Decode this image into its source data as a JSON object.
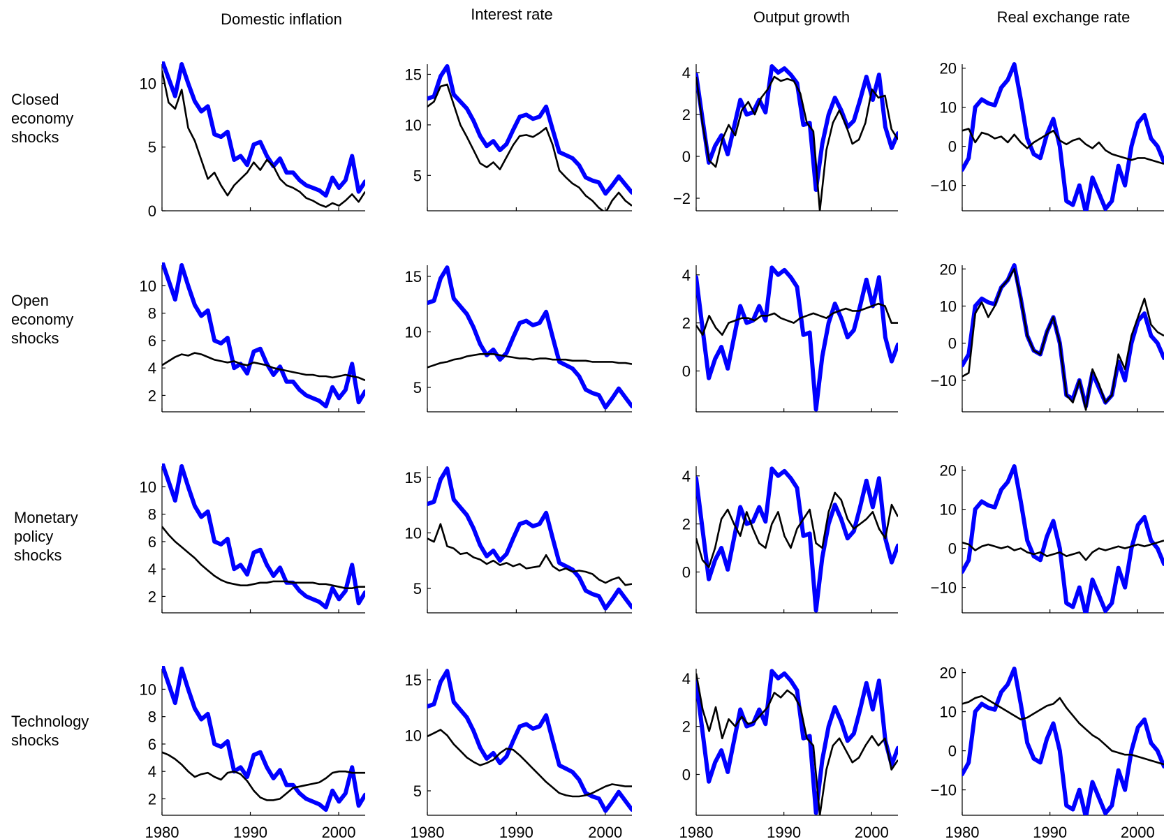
{
  "figure": {
    "columns": [
      "Domestic inflation",
      "Interest rate",
      "Output growth",
      "Real exchange rate"
    ],
    "rows": [
      {
        "label": [
          "Closed",
          "economy",
          "shocks"
        ]
      },
      {
        "label": [
          "Open",
          "economy",
          "shocks"
        ]
      },
      {
        "label": [
          "Monetary",
          "policy",
          "shocks"
        ]
      },
      {
        "label": [
          "Technology",
          "shocks"
        ]
      }
    ],
    "x_ticks": [
      "1980",
      "1990",
      "2000"
    ],
    "colors": {
      "actual": "#0000ff",
      "model": "#000000"
    }
  },
  "chart_data": {
    "type": "line",
    "x_range": [
      1980,
      2003
    ],
    "x_ticks": [
      1980,
      1990,
      2000
    ],
    "actual": {
      "domestic_inflation": [
        11.8,
        10.4,
        9.0,
        11.5,
        10.0,
        8.6,
        7.8,
        8.2,
        6.0,
        5.8,
        6.2,
        4.0,
        4.3,
        3.6,
        5.2,
        5.4,
        4.3,
        3.5,
        4.1,
        3.0,
        3.0,
        2.4,
        2.0,
        1.8,
        1.6,
        1.2,
        2.6,
        1.8,
        2.4,
        4.3,
        1.5,
        2.3
      ],
      "interest_rate": [
        12.6,
        12.8,
        14.8,
        15.8,
        13.0,
        12.3,
        11.6,
        10.4,
        8.9,
        7.9,
        8.4,
        7.5,
        8.1,
        9.5,
        10.8,
        11.0,
        10.6,
        10.8,
        11.8,
        9.5,
        7.3,
        7.0,
        6.7,
        6.0,
        4.8,
        4.5,
        4.3,
        3.2,
        4.0,
        4.9,
        4.1,
        3.3
      ],
      "output_growth": [
        3.9,
        1.8,
        -0.3,
        0.5,
        1.0,
        0.1,
        1.4,
        2.7,
        2.0,
        2.1,
        2.7,
        2.1,
        4.3,
        4.0,
        4.2,
        3.9,
        3.5,
        1.5,
        1.6,
        -1.6,
        0.6,
        2.0,
        2.8,
        2.2,
        1.4,
        1.7,
        2.7,
        3.8,
        2.7,
        3.9,
        1.4,
        0.4,
        1.1
      ],
      "real_exchange_rate": [
        -6.0,
        -3.0,
        10.0,
        12.0,
        11.0,
        10.5,
        15.0,
        17.0,
        21.0,
        12.0,
        2.0,
        -2.0,
        -3.0,
        3.0,
        7.0,
        0.0,
        -14.0,
        -15.0,
        -10.0,
        -17.0,
        -8.0,
        -12.0,
        -16.0,
        -14.0,
        -5.0,
        -10.0,
        0.0,
        6.0,
        8.0,
        2.0,
        0.0,
        -4.0
      ]
    },
    "panels": [
      {
        "row": "Closed economy shocks",
        "column": "Domestic inflation",
        "ylim": [
          0,
          11.5
        ],
        "yticks": [
          0,
          5,
          10
        ],
        "model": [
          11.0,
          8.5,
          8.0,
          9.5,
          6.5,
          5.5,
          4.0,
          2.5,
          3.0,
          2.0,
          1.2,
          2.0,
          2.5,
          3.0,
          3.8,
          3.2,
          4.0,
          3.5,
          2.5,
          2.0,
          1.8,
          1.5,
          1.0,
          0.8,
          0.5,
          0.3,
          0.6,
          0.4,
          0.8,
          1.3,
          0.7,
          1.5
        ]
      },
      {
        "row": "Closed economy shocks",
        "column": "Interest rate",
        "ylim": [
          1.5,
          16.0
        ],
        "yticks": [
          5,
          10,
          15
        ],
        "model": [
          11.8,
          12.3,
          13.8,
          14.0,
          12.0,
          10.0,
          8.8,
          7.5,
          6.2,
          5.8,
          6.3,
          5.6,
          6.8,
          8.0,
          8.9,
          9.0,
          8.8,
          9.2,
          9.7,
          8.0,
          5.5,
          4.8,
          4.2,
          3.8,
          3.0,
          2.5,
          1.8,
          1.3,
          2.5,
          3.3,
          2.5,
          2.0
        ]
      },
      {
        "row": "Closed economy shocks",
        "column": "Output growth",
        "ylim": [
          -2.6,
          4.4
        ],
        "yticks": [
          -2,
          0,
          2,
          4
        ],
        "model": [
          3.8,
          1.5,
          -0.2,
          -0.5,
          0.8,
          1.5,
          1.0,
          2.2,
          2.6,
          2.0,
          2.8,
          3.2,
          3.8,
          3.6,
          3.7,
          3.6,
          3.0,
          1.6,
          1.2,
          -2.6,
          0.3,
          1.6,
          2.2,
          1.5,
          0.6,
          0.8,
          1.6,
          3.2,
          2.8,
          2.9,
          1.3,
          0.8
        ]
      },
      {
        "row": "Closed economy shocks",
        "column": "Real exchange rate",
        "ylim": [
          -16.5,
          21.0
        ],
        "yticks": [
          -10,
          0,
          10,
          20
        ],
        "model": [
          4.0,
          4.5,
          1.0,
          3.5,
          3.0,
          2.0,
          2.5,
          1.0,
          3.0,
          1.0,
          -0.5,
          1.0,
          2.0,
          3.0,
          4.0,
          1.5,
          0.5,
          1.5,
          2.0,
          0.5,
          -0.5,
          1.0,
          -1.0,
          -2.0,
          -2.5,
          -3.0,
          -3.5,
          -3.0,
          -3.0,
          -3.5,
          -4.0,
          -4.5
        ]
      },
      {
        "row": "Open economy shocks",
        "column": "Domestic inflation",
        "ylim": [
          0.8,
          11.5
        ],
        "yticks": [
          2,
          4,
          6,
          8,
          10
        ],
        "model": [
          4.2,
          4.5,
          4.8,
          5.0,
          4.9,
          5.1,
          5.0,
          4.8,
          4.6,
          4.5,
          4.4,
          4.5,
          4.3,
          4.2,
          4.4,
          4.3,
          4.2,
          4.0,
          3.9,
          3.8,
          3.7,
          3.6,
          3.5,
          3.5,
          3.4,
          3.4,
          3.3,
          3.4,
          3.5,
          3.4,
          3.3,
          3.1
        ]
      },
      {
        "row": "Open economy shocks",
        "column": "Interest rate",
        "ylim": [
          2.8,
          16.0
        ],
        "yticks": [
          5,
          10,
          15
        ],
        "model": [
          6.8,
          7.0,
          7.2,
          7.3,
          7.5,
          7.6,
          7.8,
          7.9,
          8.0,
          8.0,
          8.0,
          7.9,
          7.8,
          7.7,
          7.6,
          7.6,
          7.5,
          7.6,
          7.6,
          7.5,
          7.5,
          7.5,
          7.4,
          7.4,
          7.4,
          7.3,
          7.3,
          7.3,
          7.3,
          7.2,
          7.2,
          7.1
        ]
      },
      {
        "row": "Open economy shocks",
        "column": "Output growth",
        "ylim": [
          -1.7,
          4.4
        ],
        "yticks": [
          0,
          2,
          4
        ],
        "model": [
          1.9,
          1.5,
          2.3,
          1.8,
          1.5,
          2.0,
          2.1,
          2.2,
          2.2,
          2.1,
          2.3,
          2.3,
          2.4,
          2.2,
          2.1,
          2.0,
          2.2,
          2.3,
          2.4,
          2.3,
          2.2,
          2.4,
          2.5,
          2.6,
          2.5,
          2.5,
          2.6,
          2.7,
          2.8,
          2.7,
          2.0,
          2.0
        ]
      },
      {
        "row": "Open economy shocks",
        "column": "Real exchange rate",
        "ylim": [
          -18.5,
          21.0
        ],
        "yticks": [
          -10,
          0,
          10,
          20
        ],
        "model": [
          -9.0,
          -8.0,
          8.0,
          11.0,
          7.0,
          10.0,
          15.0,
          17.0,
          20.0,
          12.0,
          2.0,
          -2.0,
          -3.0,
          3.0,
          7.0,
          0.0,
          -14.0,
          -16.0,
          -10.0,
          -18.0,
          -7.0,
          -11.0,
          -16.0,
          -14.0,
          -3.0,
          -7.0,
          2.0,
          7.0,
          12.0,
          5.0,
          3.0,
          2.0
        ]
      },
      {
        "row": "Monetary policy shocks",
        "column": "Domestic inflation",
        "ylim": [
          0.8,
          11.5
        ],
        "yticks": [
          2,
          4,
          6,
          8,
          10
        ],
        "model": [
          7.1,
          6.5,
          6.0,
          5.6,
          5.2,
          4.8,
          4.3,
          3.9,
          3.5,
          3.2,
          3.0,
          2.9,
          2.8,
          2.8,
          2.9,
          3.0,
          3.0,
          3.1,
          3.1,
          3.1,
          3.0,
          3.0,
          3.0,
          3.0,
          2.9,
          2.9,
          2.8,
          2.7,
          2.6,
          2.6,
          2.7,
          2.7
        ]
      },
      {
        "row": "Monetary policy shocks",
        "column": "Interest rate",
        "ylim": [
          2.8,
          16.0
        ],
        "yticks": [
          5,
          10,
          15
        ],
        "model": [
          9.5,
          9.2,
          10.8,
          8.8,
          8.6,
          8.1,
          8.2,
          7.8,
          7.6,
          7.2,
          7.5,
          7.1,
          7.3,
          7.0,
          7.2,
          6.8,
          6.9,
          7.0,
          8.0,
          7.0,
          6.6,
          6.8,
          6.5,
          6.6,
          6.5,
          6.3,
          5.8,
          5.5,
          5.8,
          6.0,
          5.3,
          5.4
        ]
      },
      {
        "row": "Monetary policy shocks",
        "column": "Output growth",
        "ylim": [
          -1.7,
          4.4
        ],
        "yticks": [
          0,
          2,
          4
        ],
        "model": [
          1.4,
          0.5,
          0.2,
          1.0,
          2.2,
          2.6,
          2.0,
          1.5,
          2.5,
          1.8,
          1.2,
          1.0,
          2.0,
          2.5,
          1.5,
          1.0,
          1.8,
          2.2,
          2.6,
          1.2,
          1.0,
          2.5,
          3.3,
          3.0,
          2.2,
          1.8,
          2.0,
          2.2,
          2.5,
          1.8,
          1.4,
          2.8,
          2.3
        ]
      },
      {
        "row": "Monetary policy shocks",
        "column": "Real exchange rate",
        "ylim": [
          -16.5,
          21.0
        ],
        "yticks": [
          -10,
          0,
          10,
          20
        ],
        "model": [
          1.5,
          1.0,
          -0.5,
          0.5,
          1.0,
          0.5,
          0.0,
          0.5,
          -0.5,
          0.0,
          -1.0,
          -1.5,
          -1.0,
          -2.0,
          -1.5,
          -1.0,
          -2.0,
          -1.5,
          -1.0,
          -3.0,
          -1.0,
          0.0,
          -0.5,
          0.0,
          0.5,
          0.0,
          0.5,
          1.0,
          0.5,
          1.0,
          1.5,
          2.0
        ]
      },
      {
        "row": "Technology shocks",
        "column": "Domestic inflation",
        "ylim": [
          0.8,
          11.5
        ],
        "yticks": [
          2,
          4,
          6,
          8,
          10
        ],
        "model": [
          5.4,
          5.2,
          4.9,
          4.5,
          4.0,
          3.6,
          3.8,
          3.9,
          3.6,
          3.4,
          3.9,
          4.0,
          3.8,
          3.3,
          2.6,
          2.1,
          1.9,
          1.9,
          2.0,
          2.4,
          2.8,
          2.9,
          3.0,
          3.1,
          3.2,
          3.5,
          3.9,
          4.0,
          4.0,
          3.9,
          3.9,
          3.9
        ]
      },
      {
        "row": "Technology shocks",
        "column": "Interest rate",
        "ylim": [
          2.8,
          16.0
        ],
        "yticks": [
          5,
          10,
          15
        ],
        "model": [
          9.9,
          10.2,
          10.5,
          10.0,
          9.2,
          8.6,
          8.0,
          7.6,
          7.3,
          7.5,
          7.8,
          8.4,
          8.8,
          8.7,
          8.2,
          7.6,
          7.0,
          6.4,
          5.8,
          5.3,
          4.8,
          4.6,
          4.5,
          4.5,
          4.6,
          4.8,
          5.1,
          5.4,
          5.6,
          5.5,
          5.4,
          5.4
        ]
      },
      {
        "row": "Technology shocks",
        "column": "Output growth",
        "ylim": [
          -1.7,
          4.4
        ],
        "yticks": [
          0,
          2,
          4
        ],
        "model": [
          4.2,
          2.7,
          1.8,
          2.8,
          1.5,
          2.3,
          2.0,
          2.4,
          2.1,
          2.2,
          2.5,
          2.8,
          3.4,
          3.2,
          3.5,
          3.3,
          2.8,
          1.5,
          1.2,
          -1.7,
          0.2,
          1.2,
          1.5,
          1.0,
          0.5,
          0.7,
          1.2,
          1.6,
          1.2,
          1.5,
          0.2,
          0.6
        ]
      },
      {
        "row": "Technology shocks",
        "column": "Real exchange rate",
        "ylim": [
          -16.5,
          21.0
        ],
        "yticks": [
          -10,
          0,
          10,
          20
        ],
        "model": [
          12.0,
          12.5,
          13.5,
          14.0,
          13.0,
          12.0,
          11.0,
          10.0,
          9.0,
          8.0,
          8.5,
          9.5,
          10.5,
          11.5,
          12.0,
          13.5,
          11.0,
          9.0,
          7.0,
          5.5,
          4.0,
          3.0,
          1.5,
          0.0,
          -0.5,
          -1.0,
          -1.0,
          -1.5,
          -2.0,
          -2.5,
          -3.0,
          -3.5
        ]
      }
    ]
  }
}
